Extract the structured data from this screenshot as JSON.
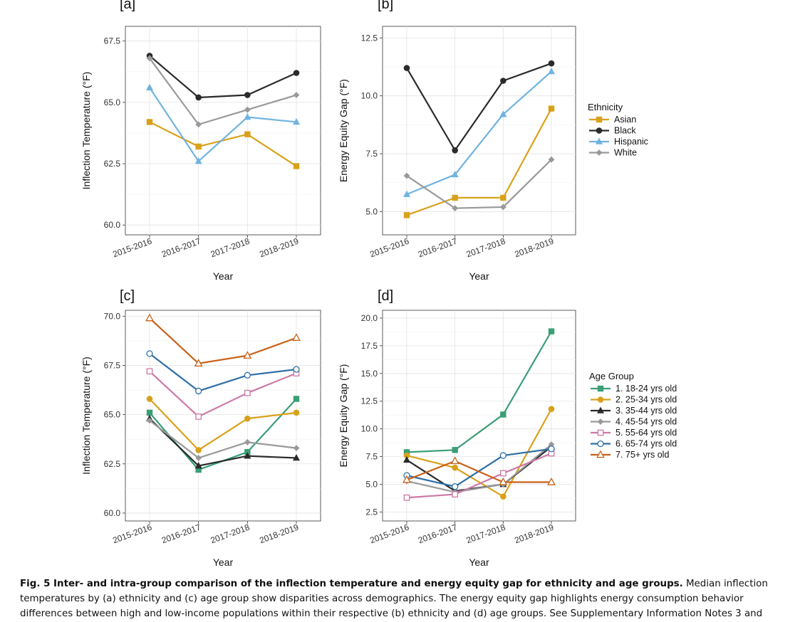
{
  "panels": [
    {
      "label": "[a]"
    },
    {
      "label": "[b]"
    },
    {
      "label": "[c]"
    },
    {
      "label": "[d]"
    }
  ],
  "legends": [
    {
      "title": "Ethnicity",
      "entries": [
        "Asian",
        "Black",
        "Hispanic",
        "White"
      ]
    },
    {
      "title": "Age Group",
      "entries": [
        "1. 18-24 yrs old",
        "2. 25-34 yrs old",
        "3. 35-44 yrs old",
        "4. 45-54 yrs old",
        "5. 55-64 yrs old",
        "6. 65-74 yrs old",
        "7. 75+ yrs old"
      ]
    }
  ],
  "colors": {
    "asian": "#d9a11a",
    "black": "#2a2a2a",
    "hispanic": "#6fb3e0",
    "white": "#999999",
    "age1": "#3a9e76",
    "age2": "#d9a11a",
    "age3": "#2a2a2a",
    "age4": "#999999",
    "age5": "#cc79a7",
    "age6": "#2e6fa7",
    "age7": "#c8621a"
  },
  "caption": {
    "lead": "Fig. 5 Inter- and intra-group comparison of the inflection temperature and energy equity gap for ethnicity and age groups.",
    "line1_rest": " Median inflection",
    "line2": "temperatures by (a) ethnicity and (c) age group show disparities across demographics. The energy equity gap highlights energy consumption behavior",
    "line3": "differences between high and low-income populations within their respective (b) ethnicity and (d) age groups. See Supplementary Information Notes 3 and"
  },
  "chart_data": [
    {
      "type": "line",
      "panel": "a",
      "xlabel": "Year",
      "ylabel": "Inflection Temperature (°F)",
      "categories": [
        "2015-2016",
        "2016-2017",
        "2017-2018",
        "2018-2019"
      ],
      "ylim": [
        59.6,
        68.1
      ],
      "yticks": [
        60.0,
        62.5,
        65.0,
        67.5
      ],
      "grid": true,
      "series": [
        {
          "name": "Asian",
          "color": "#d9a11a",
          "marker": "square",
          "values": [
            64.2,
            63.2,
            63.7,
            62.4
          ]
        },
        {
          "name": "Black",
          "color": "#2a2a2a",
          "marker": "circle",
          "values": [
            66.9,
            65.2,
            65.3,
            66.2
          ]
        },
        {
          "name": "Hispanic",
          "color": "#6fb3e0",
          "marker": "triangle",
          "values": [
            65.6,
            62.6,
            64.4,
            64.2
          ]
        },
        {
          "name": "White",
          "color": "#999999",
          "marker": "diamond",
          "values": [
            66.8,
            64.1,
            64.7,
            65.3
          ]
        }
      ]
    },
    {
      "type": "line",
      "panel": "b",
      "xlabel": "Year",
      "ylabel": "Energy Equity Gap (°F)",
      "categories": [
        "2015-2016",
        "2016-2017",
        "2017-2018",
        "2018-2019"
      ],
      "ylim": [
        4.0,
        13.0
      ],
      "yticks": [
        5.0,
        7.5,
        10.0,
        12.5
      ],
      "grid": true,
      "series": [
        {
          "name": "Asian",
          "color": "#d9a11a",
          "marker": "square",
          "values": [
            4.85,
            5.6,
            5.6,
            9.45
          ]
        },
        {
          "name": "Black",
          "color": "#2a2a2a",
          "marker": "circle",
          "values": [
            11.2,
            7.65,
            10.65,
            11.4
          ]
        },
        {
          "name": "Hispanic",
          "color": "#6fb3e0",
          "marker": "triangle",
          "values": [
            5.75,
            6.6,
            9.2,
            11.05
          ]
        },
        {
          "name": "White",
          "color": "#999999",
          "marker": "diamond",
          "values": [
            6.55,
            5.15,
            5.2,
            7.25
          ]
        }
      ]
    },
    {
      "type": "line",
      "panel": "c",
      "xlabel": "Year",
      "ylabel": "Inflection Temperature (°F)",
      "categories": [
        "2015-2016",
        "2016-2017",
        "2017-2018",
        "2018-2019"
      ],
      "ylim": [
        59.6,
        70.3
      ],
      "yticks": [
        60.0,
        62.5,
        65.0,
        67.5,
        70.0
      ],
      "grid": true,
      "series": [
        {
          "name": "1. 18-24 yrs old",
          "color": "#3a9e76",
          "marker": "square",
          "values": [
            65.1,
            62.2,
            63.1,
            65.8
          ]
        },
        {
          "name": "2. 25-34 yrs old",
          "color": "#d9a11a",
          "marker": "circle",
          "values": [
            65.8,
            63.2,
            64.8,
            65.1
          ]
        },
        {
          "name": "3. 35-44 yrs old",
          "color": "#2a2a2a",
          "marker": "triangle",
          "values": [
            64.8,
            62.4,
            62.9,
            62.8
          ]
        },
        {
          "name": "4. 45-54 yrs old",
          "color": "#999999",
          "marker": "diamond",
          "values": [
            64.7,
            62.8,
            63.6,
            63.3
          ]
        },
        {
          "name": "5. 55-64 yrs old",
          "color": "#cc79a7",
          "marker": "open-square",
          "values": [
            67.2,
            64.9,
            66.1,
            67.1
          ]
        },
        {
          "name": "6. 65-74 yrs old",
          "color": "#2e6fa7",
          "marker": "open-circle",
          "values": [
            68.1,
            66.2,
            67.0,
            67.3
          ]
        },
        {
          "name": "7. 75+ yrs old",
          "color": "#c8621a",
          "marker": "open-triangle",
          "values": [
            69.9,
            67.6,
            68.0,
            68.9
          ]
        }
      ]
    },
    {
      "type": "line",
      "panel": "d",
      "xlabel": "Year",
      "ylabel": "Energy Equity Gap (°F)",
      "categories": [
        "2015-2016",
        "2016-2017",
        "2017-2018",
        "2018-2019"
      ],
      "ylim": [
        1.7,
        20.7
      ],
      "yticks": [
        2.5,
        5.0,
        7.5,
        10.0,
        12.5,
        15.0,
        17.5,
        20.0
      ],
      "grid": true,
      "series": [
        {
          "name": "1. 18-24 yrs old",
          "color": "#3a9e76",
          "marker": "square",
          "values": [
            7.9,
            8.1,
            11.3,
            18.8
          ]
        },
        {
          "name": "2. 25-34 yrs old",
          "color": "#d9a11a",
          "marker": "circle",
          "values": [
            7.6,
            6.5,
            3.9,
            11.8
          ]
        },
        {
          "name": "3. 35-44 yrs old",
          "color": "#2a2a2a",
          "marker": "triangle",
          "values": [
            7.2,
            4.4,
            5.0,
            8.4
          ]
        },
        {
          "name": "4. 45-54 yrs old",
          "color": "#999999",
          "marker": "diamond",
          "values": [
            5.3,
            4.3,
            5.0,
            8.6
          ]
        },
        {
          "name": "5. 55-64 yrs old",
          "color": "#cc79a7",
          "marker": "open-square",
          "values": [
            3.8,
            4.1,
            6.0,
            7.8
          ]
        },
        {
          "name": "6. 65-74 yrs old",
          "color": "#2e6fa7",
          "marker": "open-circle",
          "values": [
            5.8,
            4.8,
            7.6,
            8.2
          ]
        },
        {
          "name": "7. 75+ yrs old",
          "color": "#c8621a",
          "marker": "open-triangle",
          "values": [
            5.4,
            7.1,
            5.2,
            5.2
          ]
        }
      ]
    }
  ]
}
